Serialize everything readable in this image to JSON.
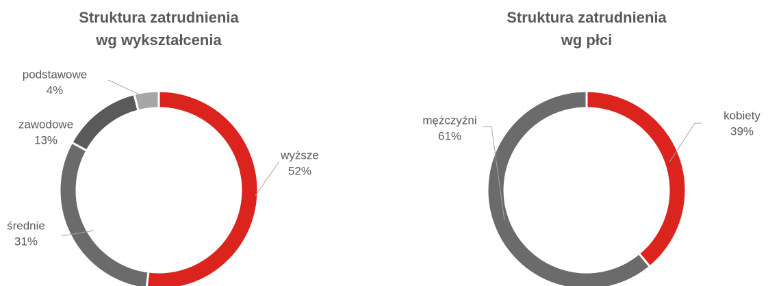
{
  "chart_data": [
    {
      "type": "pie",
      "donut": true,
      "title": [
        "Struktura zatrudnienia",
        "wg wykształcenia"
      ],
      "categories": [
        "wyższe",
        "średnie",
        "zawodowe",
        "podstawowe"
      ],
      "values": [
        52,
        31,
        13,
        4
      ],
      "value_labels": [
        "52%",
        "31%",
        "13%",
        "4%"
      ],
      "colors": [
        "#dc241f",
        "#6b6b6b",
        "#5a5a5a",
        "#a6a6a6"
      ]
    },
    {
      "type": "pie",
      "donut": true,
      "title": [
        "Struktura zatrudnienia",
        "wg płci"
      ],
      "categories": [
        "kobiety",
        "mężczyźni"
      ],
      "values": [
        39,
        61
      ],
      "value_labels": [
        "39%",
        "61%"
      ],
      "colors": [
        "#dc241f",
        "#6b6b6b"
      ]
    }
  ]
}
